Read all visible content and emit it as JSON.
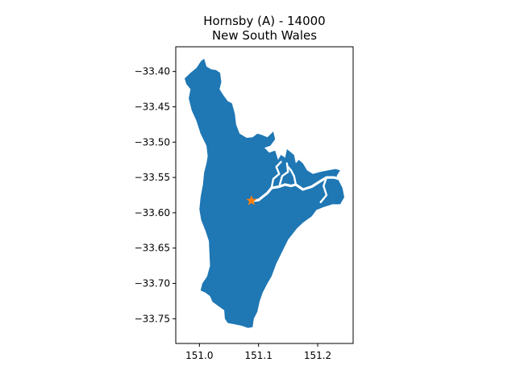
{
  "map": {
    "title_line1": "Hornsby (A) - 14000",
    "title_line2": "New South Wales",
    "region_color": "#1f77b4",
    "marker_color": "#ff7f0e",
    "marker_icon": "star-icon",
    "marker_location": {
      "lon": 151.088,
      "lat": -33.583
    }
  },
  "axes": {
    "xlim": [
      150.96,
      151.26
    ],
    "ylim": [
      -33.785,
      -33.365
    ],
    "x_ticks": [
      {
        "value": 151.0,
        "label": "151.0"
      },
      {
        "value": 151.1,
        "label": "151.1"
      },
      {
        "value": 151.2,
        "label": "151.2"
      }
    ],
    "y_ticks": [
      {
        "value": -33.4,
        "label": "−33.40"
      },
      {
        "value": -33.45,
        "label": "−33.45"
      },
      {
        "value": -33.5,
        "label": "−33.50"
      },
      {
        "value": -33.55,
        "label": "−33.55"
      },
      {
        "value": -33.6,
        "label": "−33.60"
      },
      {
        "value": -33.65,
        "label": "−33.65"
      },
      {
        "value": -33.7,
        "label": "−33.70"
      },
      {
        "value": -33.75,
        "label": "−33.75"
      }
    ]
  },
  "boundary": [
    [
      151.003,
      -33.385
    ],
    [
      151.008,
      -33.382
    ],
    [
      151.012,
      -33.393
    ],
    [
      151.02,
      -33.397
    ],
    [
      151.028,
      -33.398
    ],
    [
      151.035,
      -33.402
    ],
    [
      151.037,
      -33.415
    ],
    [
      151.034,
      -33.425
    ],
    [
      151.04,
      -33.433
    ],
    [
      151.048,
      -33.442
    ],
    [
      151.055,
      -33.445
    ],
    [
      151.06,
      -33.46
    ],
    [
      151.062,
      -33.475
    ],
    [
      151.068,
      -33.488
    ],
    [
      151.08,
      -33.494
    ],
    [
      151.09,
      -33.493
    ],
    [
      151.098,
      -33.488
    ],
    [
      151.106,
      -33.49
    ],
    [
      151.115,
      -33.493
    ],
    [
      151.125,
      -33.485
    ],
    [
      151.128,
      -33.496
    ],
    [
      151.12,
      -33.505
    ],
    [
      151.11,
      -33.508
    ],
    [
      151.118,
      -33.515
    ],
    [
      151.128,
      -33.512
    ],
    [
      151.133,
      -33.525
    ],
    [
      151.138,
      -33.518
    ],
    [
      151.145,
      -33.522
    ],
    [
      151.148,
      -33.51
    ],
    [
      151.16,
      -33.518
    ],
    [
      151.163,
      -33.53
    ],
    [
      151.168,
      -33.525
    ],
    [
      151.175,
      -33.53
    ],
    [
      151.182,
      -33.54
    ],
    [
      151.192,
      -33.545
    ],
    [
      151.205,
      -33.542
    ],
    [
      151.218,
      -33.54
    ],
    [
      151.23,
      -33.538
    ],
    [
      151.238,
      -33.54
    ],
    [
      151.232,
      -33.548
    ],
    [
      151.236,
      -33.555
    ],
    [
      151.242,
      -33.565
    ],
    [
      151.245,
      -33.578
    ],
    [
      151.238,
      -33.588
    ],
    [
      151.225,
      -33.588
    ],
    [
      151.21,
      -33.592
    ],
    [
      151.198,
      -33.596
    ],
    [
      151.19,
      -33.605
    ],
    [
      151.175,
      -33.614
    ],
    [
      151.165,
      -33.622
    ],
    [
      151.15,
      -33.638
    ],
    [
      151.14,
      -33.655
    ],
    [
      151.13,
      -33.672
    ],
    [
      151.122,
      -33.69
    ],
    [
      151.115,
      -33.7
    ],
    [
      151.107,
      -33.713
    ],
    [
      151.102,
      -33.725
    ],
    [
      151.098,
      -33.74
    ],
    [
      151.092,
      -33.75
    ],
    [
      151.09,
      -33.762
    ],
    [
      151.082,
      -33.763
    ],
    [
      151.072,
      -33.76
    ],
    [
      151.06,
      -33.758
    ],
    [
      151.048,
      -33.756
    ],
    [
      151.043,
      -33.75
    ],
    [
      151.042,
      -33.738
    ],
    [
      151.032,
      -33.732
    ],
    [
      151.022,
      -33.726
    ],
    [
      151.018,
      -33.718
    ],
    [
      151.01,
      -33.713
    ],
    [
      151.002,
      -33.71
    ],
    [
      151.005,
      -33.7
    ],
    [
      151.013,
      -33.69
    ],
    [
      151.018,
      -33.675
    ],
    [
      151.017,
      -33.658
    ],
    [
      151.016,
      -33.64
    ],
    [
      151.01,
      -33.625
    ],
    [
      151.003,
      -33.61
    ],
    [
      151.0,
      -33.595
    ],
    [
      151.002,
      -33.578
    ],
    [
      151.006,
      -33.56
    ],
    [
      151.008,
      -33.543
    ],
    [
      151.012,
      -33.53
    ],
    [
      151.014,
      -33.52
    ],
    [
      151.012,
      -33.505
    ],
    [
      151.002,
      -33.488
    ],
    [
      150.995,
      -33.47
    ],
    [
      150.987,
      -33.455
    ],
    [
      150.982,
      -33.438
    ],
    [
      150.985,
      -33.425
    ],
    [
      150.978,
      -33.418
    ],
    [
      150.975,
      -33.41
    ],
    [
      150.985,
      -33.402
    ],
    [
      150.995,
      -33.395
    ]
  ],
  "waterways": [
    [
      [
        151.088,
        -33.583
      ],
      [
        151.1,
        -33.582
      ],
      [
        151.115,
        -33.572
      ],
      [
        151.122,
        -33.565
      ],
      [
        151.135,
        -33.563
      ],
      [
        151.145,
        -33.56
      ],
      [
        151.155,
        -33.562
      ],
      [
        151.163,
        -33.56
      ],
      [
        151.175,
        -33.567
      ],
      [
        151.19,
        -33.563
      ],
      [
        151.205,
        -33.555
      ],
      [
        151.215,
        -33.55
      ],
      [
        151.228,
        -33.55
      ],
      [
        151.24,
        -33.553
      ]
    ],
    [
      [
        151.163,
        -33.56
      ],
      [
        151.16,
        -33.548
      ],
      [
        151.155,
        -33.54
      ],
      [
        151.15,
        -33.535
      ]
    ],
    [
      [
        151.135,
        -33.563
      ],
      [
        151.14,
        -33.548
      ],
      [
        151.15,
        -33.542
      ],
      [
        151.148,
        -33.53
      ]
    ],
    [
      [
        151.122,
        -33.565
      ],
      [
        151.125,
        -33.552
      ],
      [
        151.135,
        -33.545
      ],
      [
        151.13,
        -33.535
      ],
      [
        151.138,
        -33.528
      ]
    ],
    [
      [
        151.215,
        -33.55
      ],
      [
        151.21,
        -33.562
      ],
      [
        151.215,
        -33.575
      ],
      [
        151.205,
        -33.585
      ]
    ]
  ]
}
